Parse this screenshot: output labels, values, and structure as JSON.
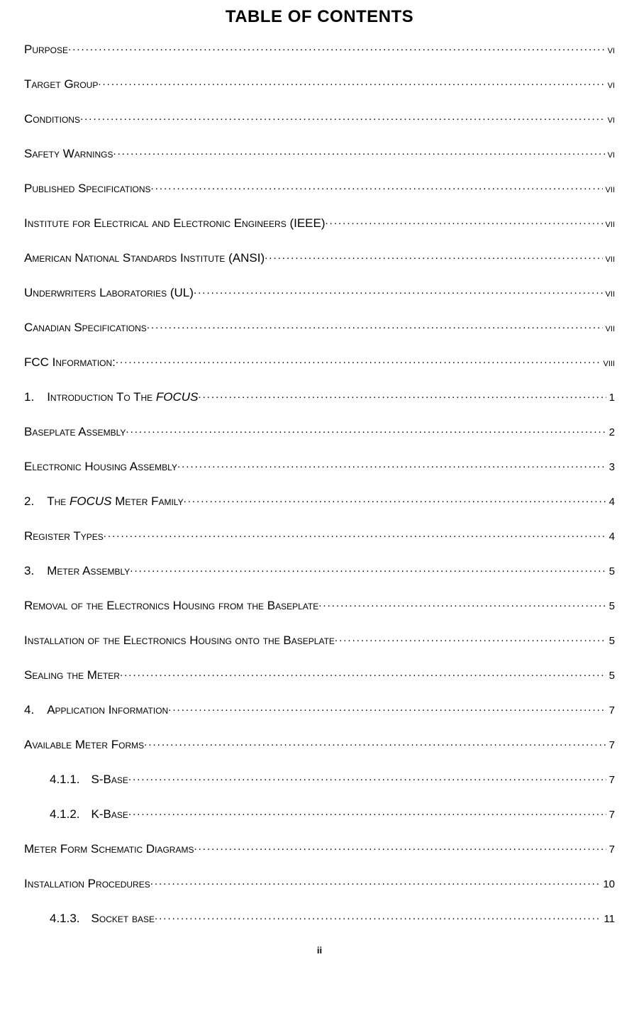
{
  "title": "TABLE OF CONTENTS",
  "footer": "ii",
  "entries": [
    {
      "num": "",
      "label_pre": "Purpose",
      "label_it": "",
      "label_post": "",
      "page": "vi",
      "roman": true,
      "indent": 0
    },
    {
      "num": "",
      "label_pre": "Target Group",
      "label_it": "",
      "label_post": "",
      "page": "vi",
      "roman": true,
      "indent": 0
    },
    {
      "num": "",
      "label_pre": "Conditions",
      "label_it": "",
      "label_post": "",
      "page": "vi",
      "roman": true,
      "indent": 0
    },
    {
      "num": "",
      "label_pre": "Safety Warnings",
      "label_it": "",
      "label_post": "",
      "page": "vi",
      "roman": true,
      "indent": 0
    },
    {
      "num": "",
      "label_pre": "Published Specifications",
      "label_it": "",
      "label_post": "",
      "page": "vii",
      "roman": true,
      "indent": 0
    },
    {
      "num": "",
      "label_pre": "Institute for Electrical and Electronic Engineers (IEEE)",
      "label_it": "",
      "label_post": "",
      "page": "vii",
      "roman": true,
      "indent": 0
    },
    {
      "num": "",
      "label_pre": "American National Standards Institute (ANSI)",
      "label_it": "",
      "label_post": "",
      "page": "vii",
      "roman": true,
      "indent": 0
    },
    {
      "num": "",
      "label_pre": "Underwriters Laboratories (UL)",
      "label_it": "",
      "label_post": "",
      "page": "vii",
      "roman": true,
      "indent": 0
    },
    {
      "num": "",
      "label_pre": "Canadian Specifications",
      "label_it": "",
      "label_post": "",
      "page": "vii",
      "roman": true,
      "indent": 0
    },
    {
      "num": "",
      "label_pre": "FCC Information:",
      "label_it": "",
      "label_post": "",
      "page": "viii",
      "roman": true,
      "indent": 0
    },
    {
      "num": "1.",
      "label_pre": "Introduction To The ",
      "label_it": "FOCUS",
      "label_post": "",
      "page": "1",
      "roman": false,
      "indent": 1
    },
    {
      "num": "",
      "label_pre": "Baseplate Assembly",
      "label_it": "",
      "label_post": "",
      "page": "2",
      "roman": false,
      "indent": 0
    },
    {
      "num": "",
      "label_pre": "Electronic Housing Assembly",
      "label_it": "",
      "label_post": "",
      "page": "3",
      "roman": false,
      "indent": 0
    },
    {
      "num": "2.",
      "label_pre": "The ",
      "label_it": "FOCUS",
      "label_post": " Meter Family",
      "page": "4",
      "roman": false,
      "indent": 1
    },
    {
      "num": "",
      "label_pre": "Register Types",
      "label_it": "",
      "label_post": "",
      "page": "4",
      "roman": false,
      "indent": 0
    },
    {
      "num": "3.",
      "label_pre": "Meter Assembly",
      "label_it": "",
      "label_post": "",
      "page": "5",
      "roman": false,
      "indent": 1
    },
    {
      "num": "",
      "label_pre": "Removal of the Electronics Housing from the Baseplate",
      "label_it": "",
      "label_post": "",
      "page": "5",
      "roman": false,
      "indent": 0
    },
    {
      "num": "",
      "label_pre": "Installation of the Electronics Housing onto the Baseplate",
      "label_it": "",
      "label_post": "",
      "page": "5",
      "roman": false,
      "indent": 0
    },
    {
      "num": "",
      "label_pre": "Sealing the Meter",
      "label_it": "",
      "label_post": "",
      "page": "5",
      "roman": false,
      "indent": 0
    },
    {
      "num": "4.",
      "label_pre": "Application Information",
      "label_it": "",
      "label_post": "",
      "page": "7",
      "roman": false,
      "indent": 1
    },
    {
      "num": "",
      "label_pre": "Available Meter Forms",
      "label_it": "",
      "label_post": "",
      "page": "7",
      "roman": false,
      "indent": 0
    },
    {
      "num": "4.1.1.",
      "label_pre": "S-Base",
      "label_it": "",
      "label_post": "",
      "page": "7",
      "roman": false,
      "indent": 2
    },
    {
      "num": "4.1.2.",
      "label_pre": "K-Base",
      "label_it": "",
      "label_post": "",
      "page": "7",
      "roman": false,
      "indent": 2
    },
    {
      "num": "",
      "label_pre": "Meter Form Schematic Diagrams",
      "label_it": "",
      "label_post": "",
      "page": "7",
      "roman": false,
      "indent": 0
    },
    {
      "num": "",
      "label_pre": "Installation Procedures",
      "label_it": "",
      "label_post": "",
      "page": "10",
      "roman": false,
      "indent": 0
    },
    {
      "num": "4.1.3.",
      "label_pre": "Socket base",
      "label_it": "",
      "label_post": "",
      "page": "11",
      "roman": false,
      "indent": 2
    }
  ]
}
